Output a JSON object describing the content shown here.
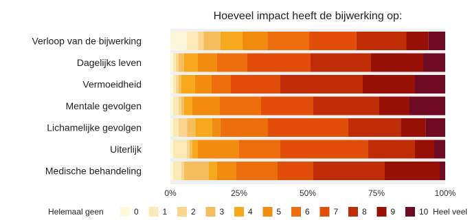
{
  "chart_data": {
    "type": "bar",
    "orientation": "horizontal",
    "stacked": "percent",
    "title": "Hoeveel impact heeft de bijwerking op:",
    "categories": [
      "Verloop van de bijwerking",
      "Dagelijks leven",
      "Vermoeidheid",
      "Mentale gevolgen",
      "Lichamelijke gevolgen",
      "Uiterlijk",
      "Medische behandeling"
    ],
    "xlim": [
      0,
      100
    ],
    "x_ticks": [
      "0%",
      "25%",
      "50%",
      "75%",
      "100%"
    ],
    "legend_low_label": "Helemaal geen",
    "legend_high_label": "Heel veel",
    "legend_position": "bottom",
    "series": [
      {
        "name": "0",
        "color": "#FFF8DC",
        "values": [
          6,
          1,
          1,
          1,
          1,
          1,
          1
        ]
      },
      {
        "name": "1",
        "color": "#FBE9B7",
        "values": [
          4,
          1,
          1,
          2,
          2,
          5,
          3
        ]
      },
      {
        "name": "2",
        "color": "#F8D68E",
        "values": [
          2,
          1,
          1,
          1,
          3,
          1,
          1
        ]
      },
      {
        "name": "3",
        "color": "#F5BF5F",
        "values": [
          6,
          2,
          1,
          1,
          3,
          1,
          9
        ]
      },
      {
        "name": "4",
        "color": "#F7A91D",
        "values": [
          8,
          5,
          5,
          3,
          6,
          2,
          3
        ]
      },
      {
        "name": "5",
        "color": "#F28C10",
        "values": [
          9,
          7,
          6,
          10,
          3,
          15,
          7
        ]
      },
      {
        "name": "6",
        "color": "#EC6E0C",
        "values": [
          15,
          11,
          7,
          15,
          17,
          15,
          15
        ]
      },
      {
        "name": "7",
        "color": "#E04E09",
        "values": [
          17,
          23,
          18,
          19,
          29,
          32,
          13
        ]
      },
      {
        "name": "8",
        "color": "#BF2D07",
        "values": [
          18,
          22,
          30,
          24,
          19,
          17,
          26
        ]
      },
      {
        "name": "9",
        "color": "#961005",
        "values": [
          8,
          19,
          19,
          11,
          9,
          7,
          20
        ]
      },
      {
        "name": "10",
        "color": "#6E0B22",
        "values": [
          6,
          8,
          11,
          13,
          7,
          4,
          2
        ]
      }
    ]
  }
}
